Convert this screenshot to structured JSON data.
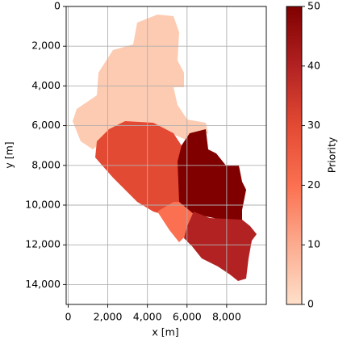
{
  "chart_data": {
    "type": "raster_map",
    "x_label": "x [m]",
    "y_label": "y [m]",
    "colorbar_label": "Priority",
    "xlim": [
      -100,
      10000
    ],
    "ylim": [
      15000,
      0
    ],
    "xticks": [
      0,
      {
        "value": 2000,
        "label": "2,000"
      },
      {
        "value": 4000,
        "label": "4,000"
      },
      {
        "value": 6000,
        "label": "6,000"
      },
      {
        "value": 8000,
        "label": "8,000"
      }
    ],
    "yticks": [
      0,
      {
        "value": 2000,
        "label": "2,000"
      },
      {
        "value": 4000,
        "label": "4,000"
      },
      {
        "value": 6000,
        "label": "6,000"
      },
      {
        "value": 8000,
        "label": "8,000"
      },
      {
        "value": 10000,
        "label": "10,000"
      },
      {
        "value": 12000,
        "label": "12,000"
      },
      {
        "value": 14000,
        "label": "14,000"
      }
    ],
    "grid": true,
    "clim": [
      0,
      50
    ],
    "cticks": [
      0,
      10,
      20,
      30,
      40,
      50
    ],
    "colormap": [
      "#fee0ca",
      "#fcab8f",
      "#fb7050",
      "#e34a33",
      "#b22222",
      "#800000"
    ],
    "values": [
      4,
      30,
      20,
      50,
      40
    ]
  }
}
